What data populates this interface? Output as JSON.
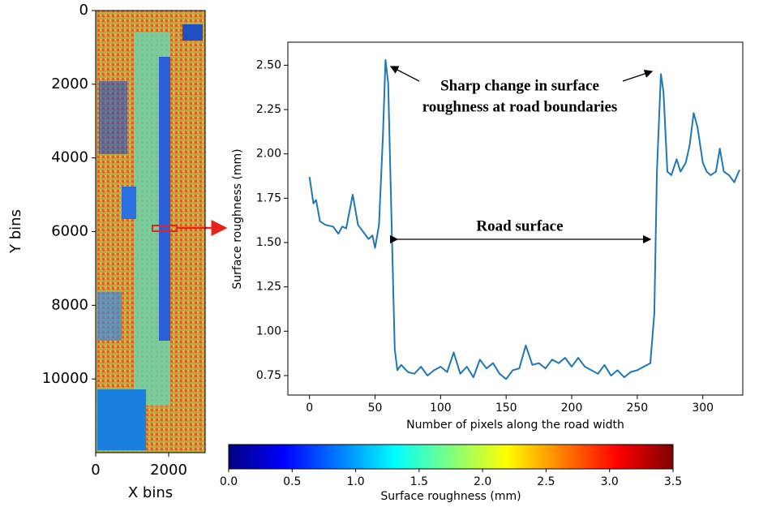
{
  "chart_data": [
    {
      "type": "image",
      "xlabel": "X bins",
      "ylabel": "Y bins",
      "xlim": [
        0,
        3000
      ],
      "ylim": [
        12000,
        0
      ],
      "xticks": [
        0,
        2000
      ],
      "yticks": [
        0,
        2000,
        4000,
        6000,
        8000,
        10000
      ]
    },
    {
      "type": "line",
      "xlabel": "Number of pixels along the road width",
      "ylabel": "Surface roughness (mm)",
      "color": "#1f77b4",
      "x": [
        0,
        3,
        5,
        8,
        12,
        18,
        22,
        25,
        28,
        33,
        37,
        42,
        45,
        48,
        50,
        53,
        56,
        58,
        60,
        63,
        65,
        67,
        70,
        75,
        80,
        85,
        90,
        95,
        100,
        105,
        110,
        115,
        120,
        125,
        130,
        135,
        140,
        145,
        150,
        155,
        160,
        165,
        170,
        175,
        180,
        185,
        190,
        195,
        200,
        205,
        210,
        215,
        220,
        225,
        230,
        235,
        240,
        245,
        250,
        255,
        260,
        263,
        265,
        268,
        270,
        273,
        276,
        280,
        283,
        287,
        290,
        293,
        296,
        300,
        303,
        306,
        310,
        313,
        316,
        320,
        324,
        328
      ],
      "values": [
        1.87,
        1.72,
        1.74,
        1.62,
        1.6,
        1.59,
        1.55,
        1.59,
        1.58,
        1.77,
        1.6,
        1.55,
        1.52,
        1.54,
        1.47,
        1.6,
        2.1,
        2.53,
        2.4,
        1.5,
        0.9,
        0.78,
        0.81,
        0.77,
        0.76,
        0.8,
        0.75,
        0.78,
        0.8,
        0.77,
        0.88,
        0.76,
        0.8,
        0.74,
        0.84,
        0.79,
        0.82,
        0.76,
        0.73,
        0.78,
        0.79,
        0.92,
        0.81,
        0.82,
        0.79,
        0.84,
        0.82,
        0.85,
        0.8,
        0.85,
        0.8,
        0.78,
        0.76,
        0.81,
        0.75,
        0.78,
        0.74,
        0.77,
        0.78,
        0.8,
        0.82,
        1.1,
        1.9,
        2.45,
        2.35,
        1.9,
        1.88,
        1.97,
        1.9,
        1.95,
        2.05,
        2.23,
        2.15,
        1.95,
        1.9,
        1.88,
        1.9,
        2.03,
        1.9,
        1.88,
        1.84,
        1.91
      ],
      "xlim": [
        -16.5,
        330.5
      ],
      "ylim": [
        0.64,
        2.63
      ],
      "xticks": [
        0,
        50,
        100,
        150,
        200,
        250,
        300
      ],
      "yticks": [
        0.75,
        {
          "value": 1,
          "label": "1.00"
        },
        1.25,
        {
          "value": 1.5,
          "label": "1.50"
        },
        1.75,
        {
          "value": 2,
          "label": "2.00"
        },
        2.25,
        {
          "value": 2.5,
          "label": "2.50"
        }
      ],
      "annotations": [
        {
          "text": [
            "Sharp change in surface",
            "roughness at road boundaries"
          ]
        },
        {
          "text": "Road surface"
        }
      ]
    },
    {
      "type": "colorbar",
      "label": "Surface roughness (mm)",
      "colormap": "jet",
      "lim": [
        0,
        3.5
      ],
      "ticks": [
        {
          "value": 0,
          "label": "0.0"
        },
        0.5,
        {
          "value": 1,
          "label": "1.0"
        },
        1.5,
        {
          "value": 2,
          "label": "2.0"
        },
        2.5,
        {
          "value": 3,
          "label": "3.0"
        },
        3.5
      ]
    }
  ]
}
